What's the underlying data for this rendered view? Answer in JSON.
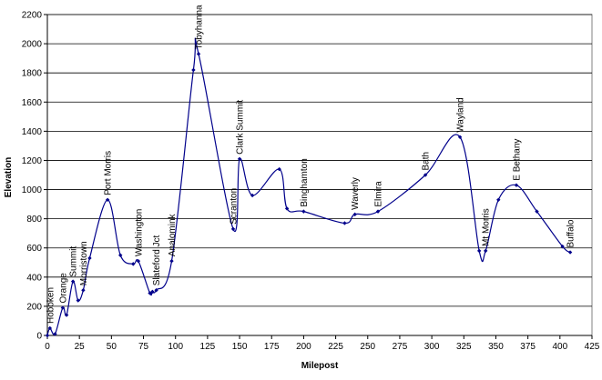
{
  "chart_data": {
    "type": "line",
    "title": "",
    "xlabel": "Milepost",
    "ylabel": "Elevation",
    "xlim": [
      0,
      425
    ],
    "ylim": [
      0,
      2200
    ],
    "xticks": [
      0,
      25,
      50,
      75,
      100,
      125,
      150,
      175,
      200,
      225,
      250,
      275,
      300,
      325,
      350,
      375,
      400,
      425
    ],
    "yticks": [
      0,
      200,
      400,
      600,
      800,
      1000,
      1200,
      1400,
      1600,
      1800,
      2000,
      2200
    ],
    "grid": "horizontal",
    "legend": "none",
    "color": "#00008b",
    "series": [
      {
        "x": [
          0,
          2,
          6,
          12,
          15,
          20,
          24,
          28,
          33,
          47,
          57,
          67,
          71,
          80,
          82,
          85,
          97,
          114,
          118,
          145,
          150,
          160,
          181,
          187,
          200,
          232,
          240,
          258,
          295,
          322,
          337,
          342,
          352,
          366,
          382,
          402,
          408
        ],
        "y": [
          0,
          50,
          10,
          190,
          140,
          370,
          240,
          310,
          530,
          930,
          550,
          490,
          510,
          290,
          300,
          310,
          510,
          1820,
          1930,
          730,
          1210,
          960,
          1140,
          870,
          850,
          770,
          830,
          850,
          1100,
          1360,
          580,
          580,
          930,
          1030,
          850,
          610,
          570
        ]
      }
    ],
    "annotations": [
      {
        "text": "Hoboken",
        "x": 2,
        "y": 50
      },
      {
        "text": "Orange",
        "x": 12,
        "y": 190
      },
      {
        "text": "Summit",
        "x": 20,
        "y": 370
      },
      {
        "text": "Morristown",
        "x": 28,
        "y": 310
      },
      {
        "text": "Port Morris",
        "x": 47,
        "y": 930
      },
      {
        "text": "Washington",
        "x": 71,
        "y": 510
      },
      {
        "text": "Slateford Jct",
        "x": 85,
        "y": 310
      },
      {
        "text": "Analomink",
        "x": 97,
        "y": 510
      },
      {
        "text": "Tobyhanna",
        "x": 118,
        "y": 1930
      },
      {
        "text": "Scranton",
        "x": 145,
        "y": 730
      },
      {
        "text": "Clark Summit",
        "x": 150,
        "y": 1210
      },
      {
        "text": "Binghamton",
        "x": 200,
        "y": 850
      },
      {
        "text": "Waverly",
        "x": 240,
        "y": 830
      },
      {
        "text": "Elmira",
        "x": 258,
        "y": 850
      },
      {
        "text": "Bath",
        "x": 295,
        "y": 1100
      },
      {
        "text": "Wayland",
        "x": 322,
        "y": 1360
      },
      {
        "text": "Mt Morris",
        "x": 342,
        "y": 580
      },
      {
        "text": "E Bethany",
        "x": 366,
        "y": 1030
      },
      {
        "text": "Buffalo",
        "x": 408,
        "y": 570
      }
    ]
  }
}
